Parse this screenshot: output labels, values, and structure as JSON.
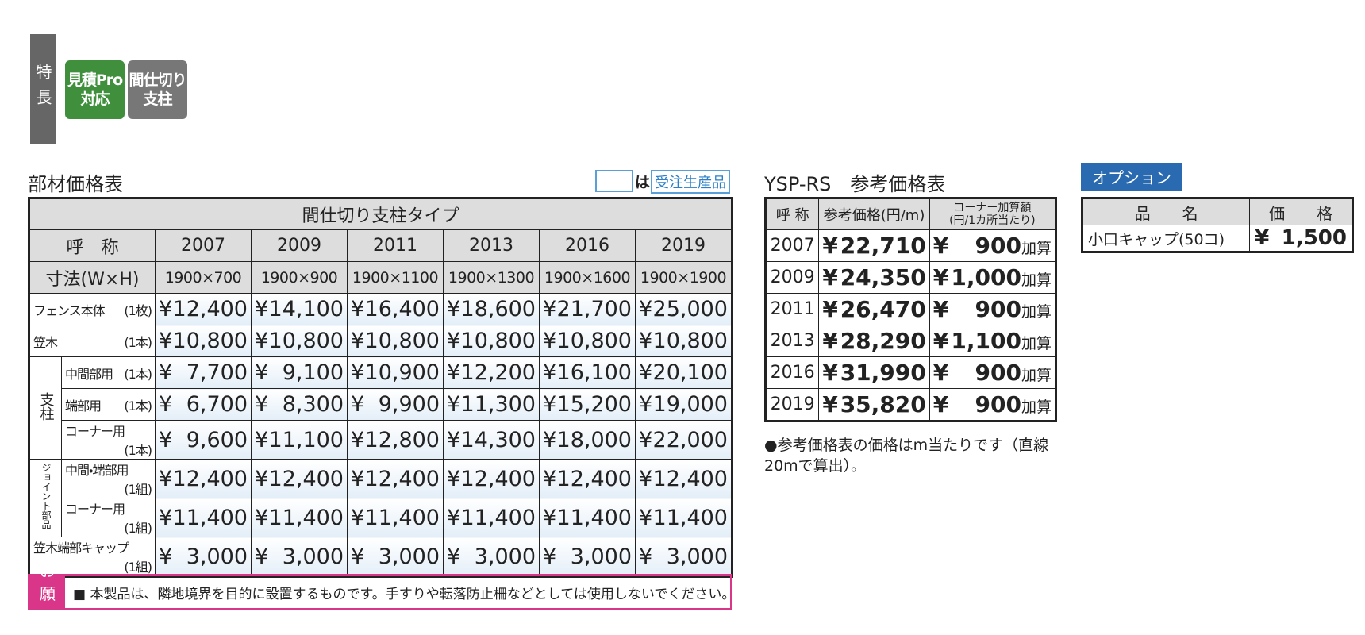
{
  "features": {
    "label": "特長",
    "badges": [
      [
        "見積Pro",
        "対応"
      ],
      [
        "間仕切り",
        "支柱"
      ]
    ]
  },
  "main_table": {
    "title": "部材価格表",
    "legend_note": "は",
    "legend_label": "受注生産品",
    "type_header": "間仕切り支柱タイプ",
    "name_header": "呼　称",
    "size_header": "寸法(W×H)",
    "currency": "¥",
    "columns": [
      "2007",
      "2009",
      "2011",
      "2013",
      "2016",
      "2019"
    ],
    "sizes": [
      "1900×700",
      "1900×900",
      "1900×1100",
      "1900×1300",
      "1900×1600",
      "1900×1900"
    ],
    "sections": [
      {
        "rows": [
          {
            "label": "フェンス本体",
            "unit": "(1枚)",
            "prices": [
              "12,400",
              "14,100",
              "16,400",
              "18,600",
              "21,700",
              "25,000"
            ]
          }
        ]
      },
      {
        "rows": [
          {
            "label": "笠木",
            "unit": "(1本)",
            "prices": [
              "10,800",
              "10,800",
              "10,800",
              "10,800",
              "10,800",
              "10,800"
            ]
          }
        ]
      },
      {
        "group": "支柱",
        "rows": [
          {
            "label": "中間部用",
            "unit": "(1本)",
            "prices": [
              "7,700",
              "9,100",
              "10,900",
              "12,200",
              "16,100",
              "20,100"
            ]
          },
          {
            "label": "端部用",
            "unit": "(1本)",
            "prices": [
              "6,700",
              "8,300",
              "9,900",
              "11,300",
              "15,200",
              "19,000"
            ]
          },
          {
            "label": "コーナー用",
            "unit": "(1本)",
            "prices": [
              "9,600",
              "11,100",
              "12,800",
              "14,300",
              "18,000",
              "22,000"
            ]
          }
        ]
      },
      {
        "group": "ジョイント部品",
        "rows": [
          {
            "label": "中間・端部用",
            "unit": "(1組)",
            "prices": [
              "12,400",
              "12,400",
              "12,400",
              "12,400",
              "12,400",
              "12,400"
            ]
          },
          {
            "label": "コーナー用",
            "unit": "(1組)",
            "prices": [
              "11,400",
              "11,400",
              "11,400",
              "11,400",
              "11,400",
              "11,400"
            ]
          }
        ]
      },
      {
        "rows": [
          {
            "label": "笠木端部キャップ",
            "unit": "(1組)",
            "prices": [
              "3,000",
              "3,000",
              "3,000",
              "3,000",
              "3,000",
              "3,000"
            ]
          }
        ]
      }
    ]
  },
  "reference_table": {
    "title": "YSP-RS　参考価格表",
    "headers": [
      "呼 称",
      "参考価格(円/m)",
      [
        "コーナー加算額",
        "(円/1カ所当たり)"
      ]
    ],
    "currency": "¥",
    "suffix": "加算",
    "rows": [
      [
        "2007",
        "22,710",
        "900"
      ],
      [
        "2009",
        "24,350",
        "1,000"
      ],
      [
        "2011",
        "26,470",
        "900"
      ],
      [
        "2013",
        "28,290",
        "1,100"
      ],
      [
        "2016",
        "31,990",
        "900"
      ],
      [
        "2019",
        "35,820",
        "900"
      ]
    ],
    "note": "●参考価格表の価格はm当たりです（直線20mで算出）。"
  },
  "option_table": {
    "title": "オプション",
    "headers": [
      "品　　名",
      "価　　格"
    ],
    "currency": "¥",
    "rows": [
      [
        "小口キャップ(50コ)",
        "1,500"
      ]
    ]
  },
  "notice": {
    "label": "お願い",
    "text": "■ 本製品は、隣地境界を目的に設置するものです。手すりや転落防止柵などとしては使用しないでください。"
  }
}
